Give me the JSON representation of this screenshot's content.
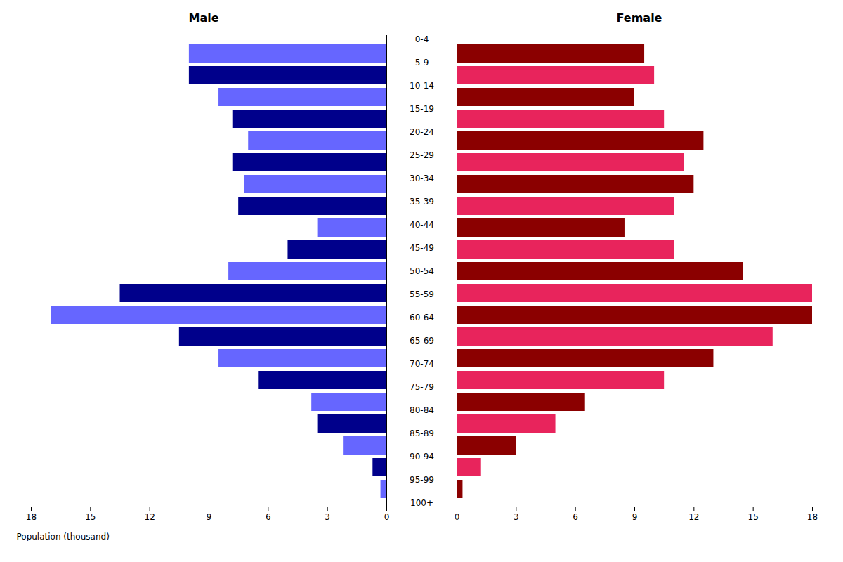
{
  "chart_data": [
    {
      "type": "bar",
      "orientation": "horizontal",
      "title": "Male",
      "xlabel": "Population (thousand)",
      "categories": [
        "100+",
        "95-99",
        "90-94",
        "85-89",
        "80-84",
        "75-79",
        "70-74",
        "65-69",
        "60-64",
        "55-59",
        "50-54",
        "45-49",
        "40-44",
        "35-39",
        "30-34",
        "25-29",
        "20-24",
        "15-19",
        "10-14",
        "5-9",
        "0-4"
      ],
      "values": [
        0.3,
        0.7,
        2.2,
        3.5,
        3.8,
        6.5,
        8.5,
        10.5,
        17.0,
        13.5,
        8.0,
        5.0,
        3.5,
        7.5,
        7.2,
        7.8,
        7.0,
        7.8,
        8.5,
        10.0,
        10.0
      ],
      "colors": [
        "#6666ff",
        "#00008B",
        "#6666ff",
        "#00008B",
        "#6666ff",
        "#00008B",
        "#6666ff",
        "#00008B",
        "#6666ff",
        "#00008B",
        "#6666ff",
        "#00008B",
        "#6666ff",
        "#00008B",
        "#6666ff",
        "#00008B",
        "#6666ff",
        "#00008B",
        "#6666ff",
        "#00008B",
        "#6666ff"
      ],
      "xlim": [
        18,
        0
      ],
      "xticks": [
        0,
        3,
        6,
        9,
        12,
        15,
        18
      ]
    },
    {
      "type": "bar",
      "orientation": "horizontal",
      "title": "Female",
      "categories": [
        "100+",
        "95-99",
        "90-94",
        "85-89",
        "80-84",
        "75-79",
        "70-74",
        "65-69",
        "60-64",
        "55-59",
        "50-54",
        "45-49",
        "40-44",
        "35-39",
        "30-34",
        "25-29",
        "20-24",
        "15-19",
        "10-14",
        "5-9",
        "0-4"
      ],
      "values": [
        0.3,
        1.2,
        3.0,
        5.0,
        6.5,
        10.5,
        13.0,
        16.0,
        18.0,
        18.0,
        14.5,
        11.0,
        8.5,
        11.0,
        12.0,
        11.5,
        12.5,
        10.5,
        9.0,
        10.0,
        9.5
      ],
      "colors": [
        "#8B0000",
        "#e8245c",
        "#8B0000",
        "#e8245c",
        "#8B0000",
        "#e8245c",
        "#8B0000",
        "#e8245c",
        "#8B0000",
        "#e8245c",
        "#8B0000",
        "#e8245c",
        "#8B0000",
        "#e8245c",
        "#8B0000",
        "#e8245c",
        "#8B0000",
        "#e8245c",
        "#8B0000",
        "#e8245c",
        "#8B0000"
      ],
      "xlim": [
        0,
        18
      ],
      "xticks": [
        0,
        3,
        6,
        9,
        12,
        15,
        18
      ]
    }
  ]
}
